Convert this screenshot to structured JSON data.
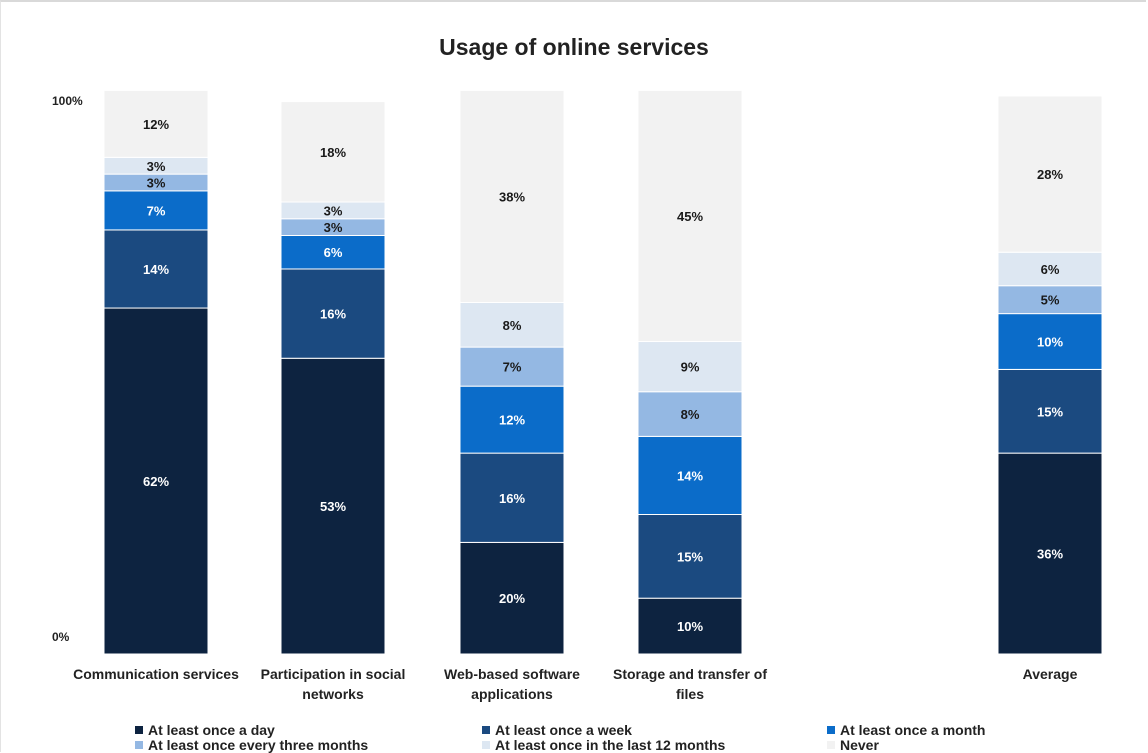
{
  "chart_data": {
    "type": "bar",
    "stacked": "100%",
    "title": "Usage of online services",
    "y_ticks": [
      "100%",
      "0%"
    ],
    "ylim": [
      0,
      100
    ],
    "categories": [
      "Communication services",
      "Participation in social networks",
      "Web-based software applications",
      "Storage and transfer of files",
      "Average"
    ],
    "series": [
      {
        "name": "At least once a day",
        "color": "#0d2340",
        "values": [
          62,
          53,
          20,
          10,
          36
        ],
        "label_color": "#ffffff"
      },
      {
        "name": "At least once a week",
        "color": "#1b4a80",
        "values": [
          14,
          16,
          16,
          15,
          15
        ],
        "label_color": "#ffffff"
      },
      {
        "name": "At least once a month",
        "color": "#0b6cc9",
        "values": [
          7,
          6,
          12,
          14,
          10
        ],
        "label_color": "#ffffff"
      },
      {
        "name": "At least once every three months",
        "color": "#94b8e3",
        "values": [
          3,
          3,
          7,
          8,
          5
        ],
        "label_color": "#1a1a1a"
      },
      {
        "name": "At least once in the last 12 months",
        "color": "#dde7f2",
        "values": [
          3,
          3,
          8,
          9,
          6
        ],
        "label_color": "#1a1a1a"
      },
      {
        "name": "Never",
        "color": "#f2f2f2",
        "values": [
          12,
          18,
          38,
          45,
          28
        ],
        "label_color": "#1a1a1a"
      }
    ],
    "grid": false,
    "legend_position": "bottom"
  }
}
